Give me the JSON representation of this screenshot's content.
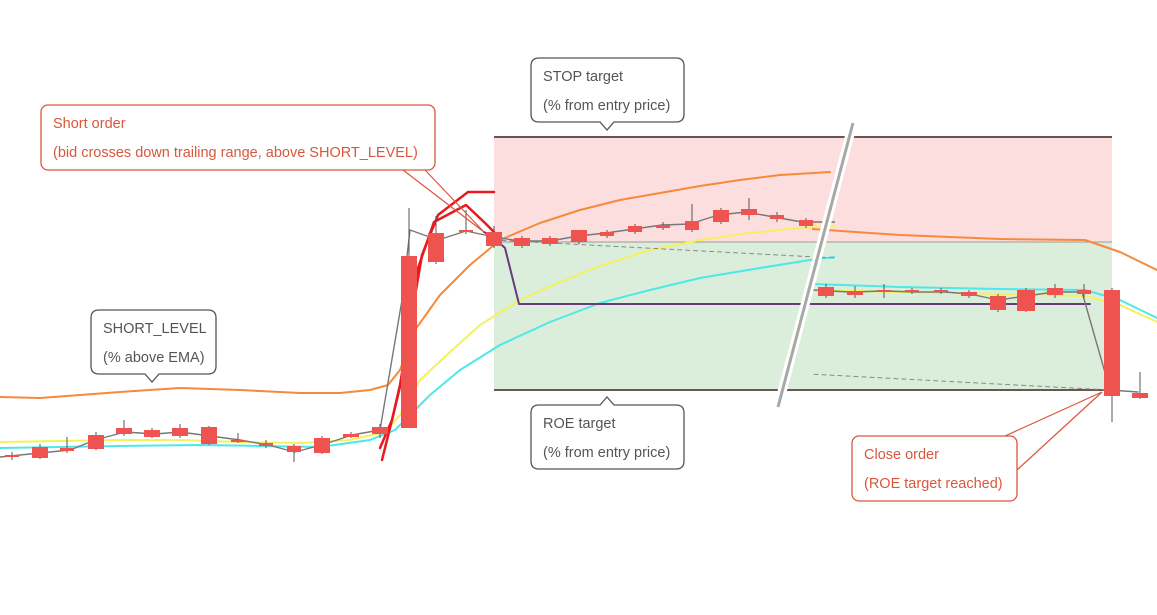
{
  "colors": {
    "bull": "#26a69a",
    "bear": "#ef5350",
    "wick": "#555555",
    "stop_zone": "#fddede",
    "roe_zone": "#dbeedb",
    "zone_border": "#6b5555",
    "ema_orange": "#f58a3a",
    "ema_yellow": "#f2f25e",
    "ema_cyan": "#4de8e8",
    "trailing_red": "#e8191f",
    "trailing_purple": "#6b3a7a",
    "callout_red": "#d9573d",
    "callout_grey": "#555555"
  },
  "callouts": {
    "short_order": {
      "line1": "Short order",
      "line2": "(bid crosses down trailing range, above SHORT_LEVEL)"
    },
    "stop_target": {
      "line1": "STOP target",
      "line2": "(% from entry price)"
    },
    "short_level": {
      "line1": "SHORT_LEVEL",
      "line2": "(% above EMA)"
    },
    "roe_target": {
      "line1": "ROE target",
      "line2": "(% from entry price)"
    },
    "close_order": {
      "line1": "Close order",
      "line2": "(ROE target reached)"
    }
  }
}
